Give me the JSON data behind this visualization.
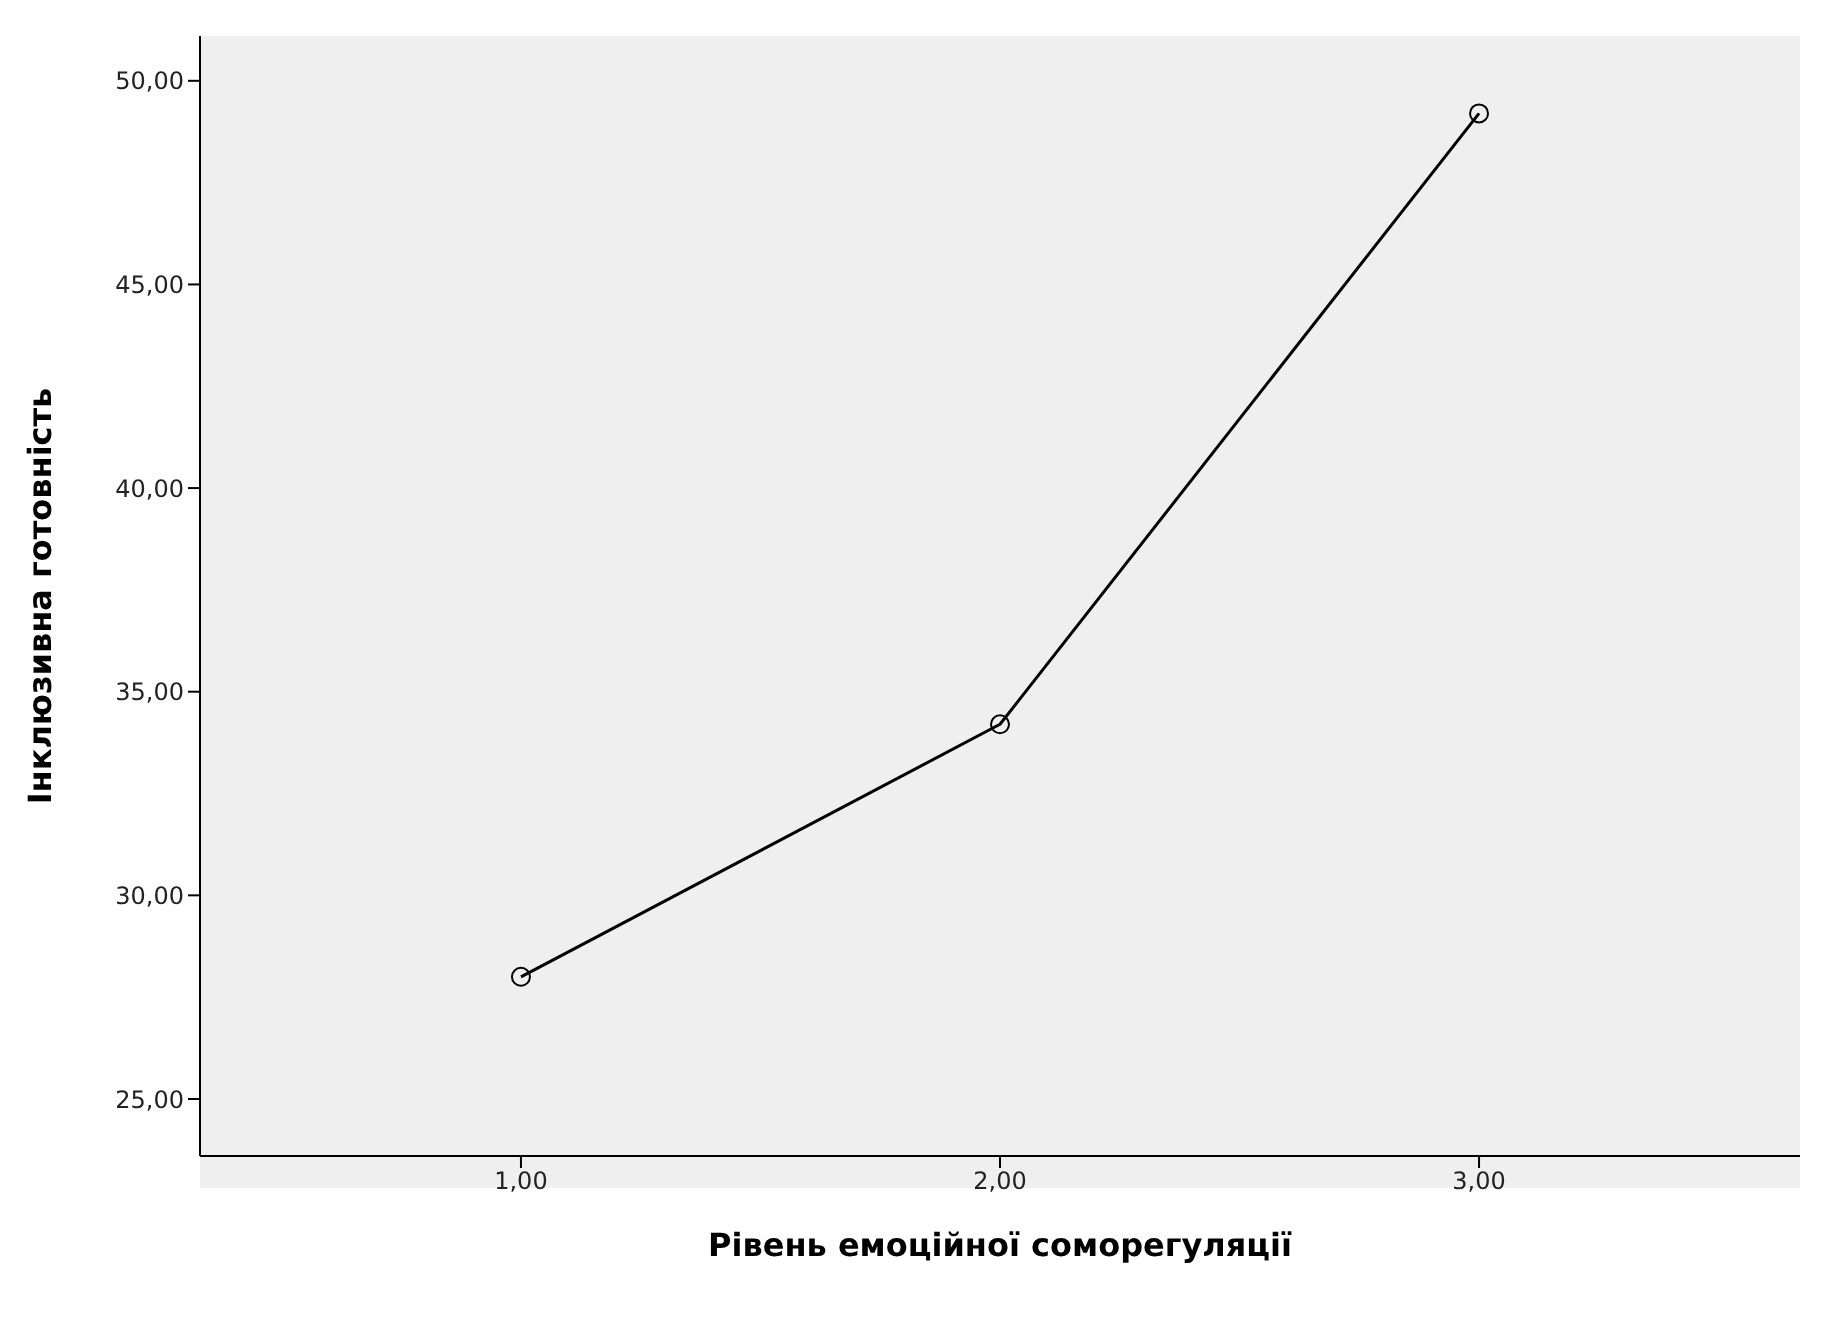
{
  "chart_data": {
    "type": "line",
    "xlabel": "Рівень емоційної соморегуляції",
    "ylabel": "Інклюзивна готовність",
    "x": [
      1,
      2,
      3
    ],
    "series": [
      {
        "color": "#000000",
        "values": [
          28.0,
          34.2,
          49.2
        ]
      }
    ],
    "xlim": [
      0.33,
      3.67
    ],
    "xticks": [
      {
        "value": 1,
        "label": "1,00"
      },
      {
        "value": 2,
        "label": "2,00"
      },
      {
        "value": 3,
        "label": "3,00"
      }
    ],
    "ylim": [
      23.6,
      51.1
    ],
    "yticks": [
      {
        "value": 25,
        "label": "25,00"
      },
      {
        "value": 30,
        "label": "30,00"
      },
      {
        "value": 35,
        "label": "35,00"
      },
      {
        "value": 40,
        "label": "40,00"
      },
      {
        "value": 45,
        "label": "45,00"
      },
      {
        "value": 50,
        "label": "50,00"
      }
    ],
    "grid": false,
    "legend": false,
    "marker": "circle",
    "line_style": "solid"
  }
}
